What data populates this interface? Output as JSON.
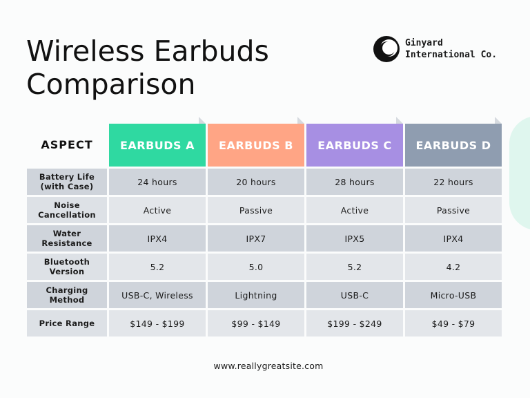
{
  "title": "Wireless Earbuds Comparison",
  "brand": {
    "name": "Ginyard International Co."
  },
  "table": {
    "aspect_header": "ASPECT",
    "products": [
      {
        "label": "EARBUDS A",
        "color": "#2fd9a1"
      },
      {
        "label": "EARBUDS B",
        "color": "#ffa585"
      },
      {
        "label": "EARBUDS C",
        "color": "#a78fe3"
      },
      {
        "label": "EARBUDS D",
        "color": "#8f9db0"
      }
    ],
    "rows": [
      {
        "aspect": "Battery Life (with Case)",
        "values": [
          "24 hours",
          "20 hours",
          "28 hours",
          "22 hours"
        ]
      },
      {
        "aspect": "Noise Cancellation",
        "values": [
          "Active",
          "Passive",
          "Active",
          "Passive"
        ]
      },
      {
        "aspect": "Water Resistance",
        "values": [
          "IPX4",
          "IPX7",
          "IPX5",
          "IPX4"
        ]
      },
      {
        "aspect": "Bluetooth Version",
        "values": [
          "5.2",
          "5.0",
          "5.2",
          "4.2"
        ]
      },
      {
        "aspect": "Charging Method",
        "values": [
          "USB-C, Wireless",
          "Lightning",
          "USB-C",
          "Micro-USB"
        ]
      },
      {
        "aspect": "Price Range",
        "values": [
          "$149 - $199",
          "$99 - $149",
          "$199 - $249",
          "$49 - $79"
        ]
      }
    ]
  },
  "footer": {
    "url": "www.reallygreatsite.com"
  }
}
